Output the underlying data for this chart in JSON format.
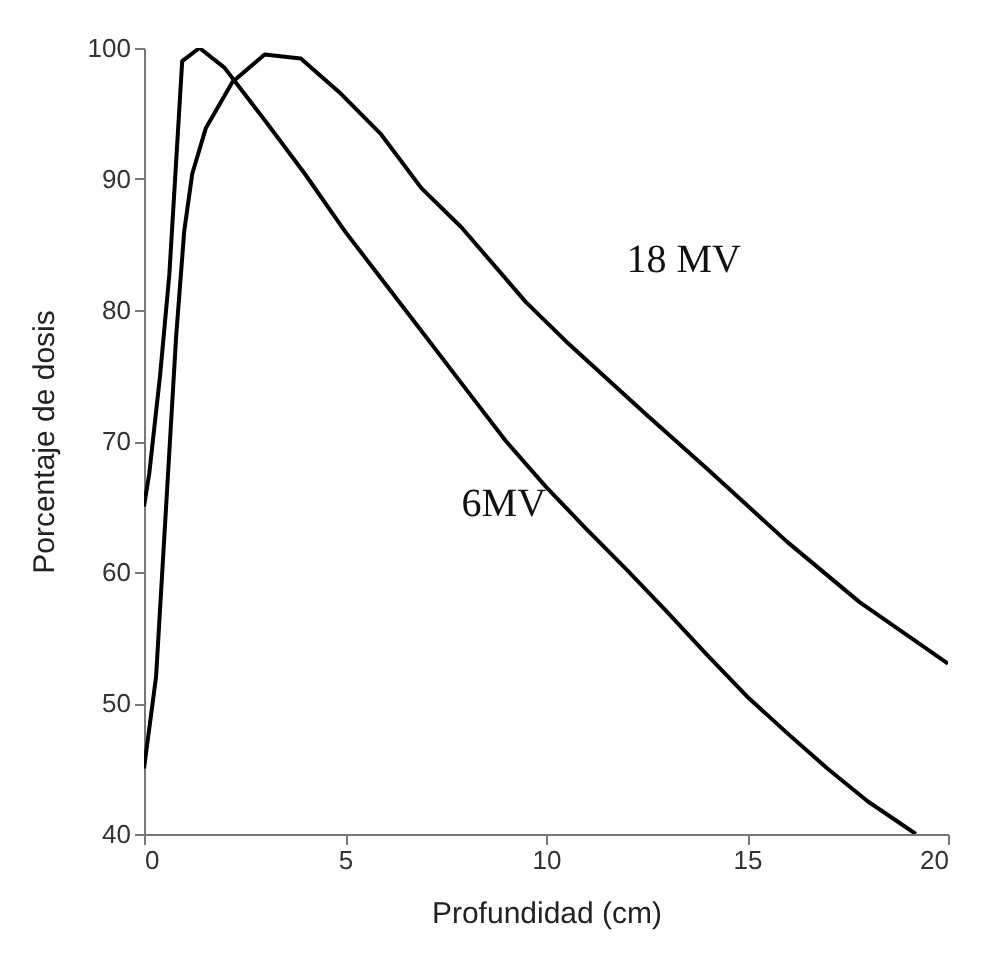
{
  "chart_data": {
    "type": "line",
    "xlabel": "Profundidad (cm)",
    "ylabel": "Porcentaje de dosis",
    "xlim": [
      0,
      20
    ],
    "ylim": [
      40,
      100
    ],
    "xticks": [
      0,
      5,
      10,
      15,
      20
    ],
    "yticks": [
      40,
      50,
      60,
      70,
      80,
      90,
      100
    ],
    "grid": false,
    "marker": "none",
    "line_style": "solid",
    "series": [
      {
        "name": "18 MV",
        "color": "#000000",
        "x": [
          0,
          0.3,
          0.55,
          0.8,
          1.0,
          1.2,
          1.54,
          2.2,
          3,
          3.9,
          4.9,
          5.9,
          6.9,
          7.9,
          9.5,
          10.5,
          12.5,
          14,
          16,
          17.8,
          20
        ],
        "values": [
          45,
          52,
          65,
          78,
          86,
          90.4,
          93.9,
          97.4,
          99.5,
          99.2,
          96.5,
          93.4,
          89.3,
          86.3,
          80.6,
          77.6,
          72,
          67.9,
          62.3,
          57.7,
          53
        ]
      },
      {
        "name": "6MV",
        "color": "#000000",
        "x": [
          0,
          0.13,
          0.4,
          0.63,
          0.95,
          1.38,
          2,
          3,
          4,
          5,
          6,
          6.85,
          8,
          9,
          10,
          11,
          12,
          13,
          14,
          15,
          16,
          17,
          18,
          19.2
        ],
        "values": [
          65,
          67.5,
          75,
          82.7,
          99,
          100,
          98.5,
          94.5,
          90.4,
          86,
          82,
          78.6,
          74,
          70,
          66.5,
          63.3,
          60.2,
          57,
          53.7,
          50.5,
          47.7,
          45,
          42.5,
          40
        ]
      }
    ]
  }
}
